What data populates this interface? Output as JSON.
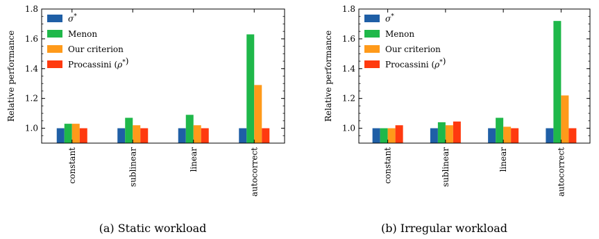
{
  "chart_data": [
    {
      "type": "bar",
      "caption": "(a) Static workload",
      "ylabel": "Relative performance",
      "ylim": [
        0.9,
        1.8
      ],
      "yticks": [
        1.0,
        1.2,
        1.4,
        1.6,
        1.8
      ],
      "ytick_labels": [
        "1.0",
        "1.2",
        "1.4",
        "1.6",
        "1.8"
      ],
      "categories": [
        "constant",
        "sublinear",
        "linear",
        "autocorrect"
      ],
      "legend": "top-left",
      "series": [
        {
          "name": "σ*",
          "color": "#1f5fa6",
          "values": [
            1.0,
            1.0,
            1.0,
            1.0
          ]
        },
        {
          "name": "Menon",
          "color": "#1fb84a",
          "values": [
            1.03,
            1.07,
            1.09,
            1.63
          ]
        },
        {
          "name": "Our criterion",
          "color": "#ff9a1a",
          "values": [
            1.03,
            1.02,
            1.02,
            1.29
          ]
        },
        {
          "name": "Procassini (ρ*)",
          "color": "#ff3a0f",
          "values": [
            1.0,
            1.0,
            1.0,
            1.0
          ]
        }
      ]
    },
    {
      "type": "bar",
      "caption": "(b) Irregular workload",
      "ylabel": "Relative performance",
      "ylim": [
        0.9,
        1.8
      ],
      "yticks": [
        1.0,
        1.2,
        1.4,
        1.6,
        1.8
      ],
      "ytick_labels": [
        "1.0",
        "1.2",
        "1.4",
        "1.6",
        "1.8"
      ],
      "categories": [
        "constant",
        "sublinear",
        "linear",
        "autocorrect"
      ],
      "legend": "top-left",
      "series": [
        {
          "name": "σ*",
          "color": "#1f5fa6",
          "values": [
            1.0,
            1.0,
            1.0,
            1.0
          ]
        },
        {
          "name": "Menon",
          "color": "#1fb84a",
          "values": [
            1.0,
            1.04,
            1.07,
            1.72
          ]
        },
        {
          "name": "Our criterion",
          "color": "#ff9a1a",
          "values": [
            1.0,
            1.02,
            1.01,
            1.22
          ]
        },
        {
          "name": "Procassini (ρ*)",
          "color": "#ff3a0f",
          "values": [
            1.02,
            1.045,
            1.0,
            1.0
          ]
        }
      ]
    }
  ]
}
